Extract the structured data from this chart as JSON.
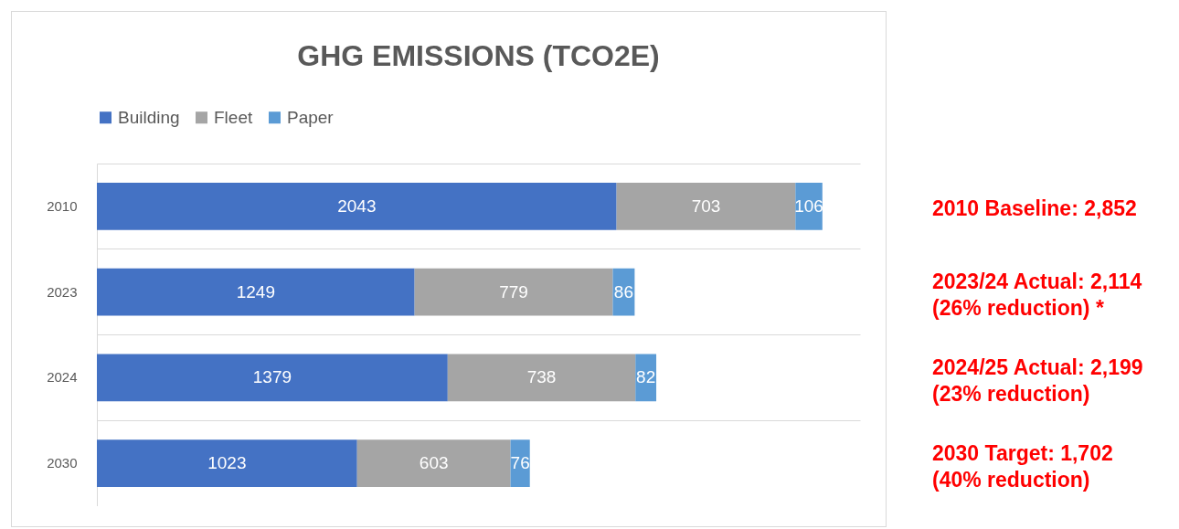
{
  "chart_data": {
    "type": "bar",
    "orientation": "horizontal",
    "stacked": true,
    "title": "GHG EMISSIONS (TCO2E)",
    "categories": [
      "2010",
      "2023",
      "2024",
      "2030"
    ],
    "series": [
      {
        "name": "Building",
        "color": "#4472c4",
        "values": [
          2043,
          1249,
          1379,
          1023
        ]
      },
      {
        "name": "Fleet",
        "color": "#a5a5a5",
        "values": [
          703,
          779,
          738,
          603
        ]
      },
      {
        "name": "Paper",
        "color": "#5b9bd5",
        "values": [
          106,
          86,
          82,
          76
        ]
      }
    ],
    "data_labels": true,
    "legend": "top",
    "grid": "y",
    "annotations": [
      "2010 Baseline: 2,852",
      "2023/24 Actual: 2,114\n(26% reduction) *",
      "2024/25 Actual: 2,199\n(23% reduction)",
      "2030 Target: 1,702\n(40% reduction)"
    ]
  }
}
